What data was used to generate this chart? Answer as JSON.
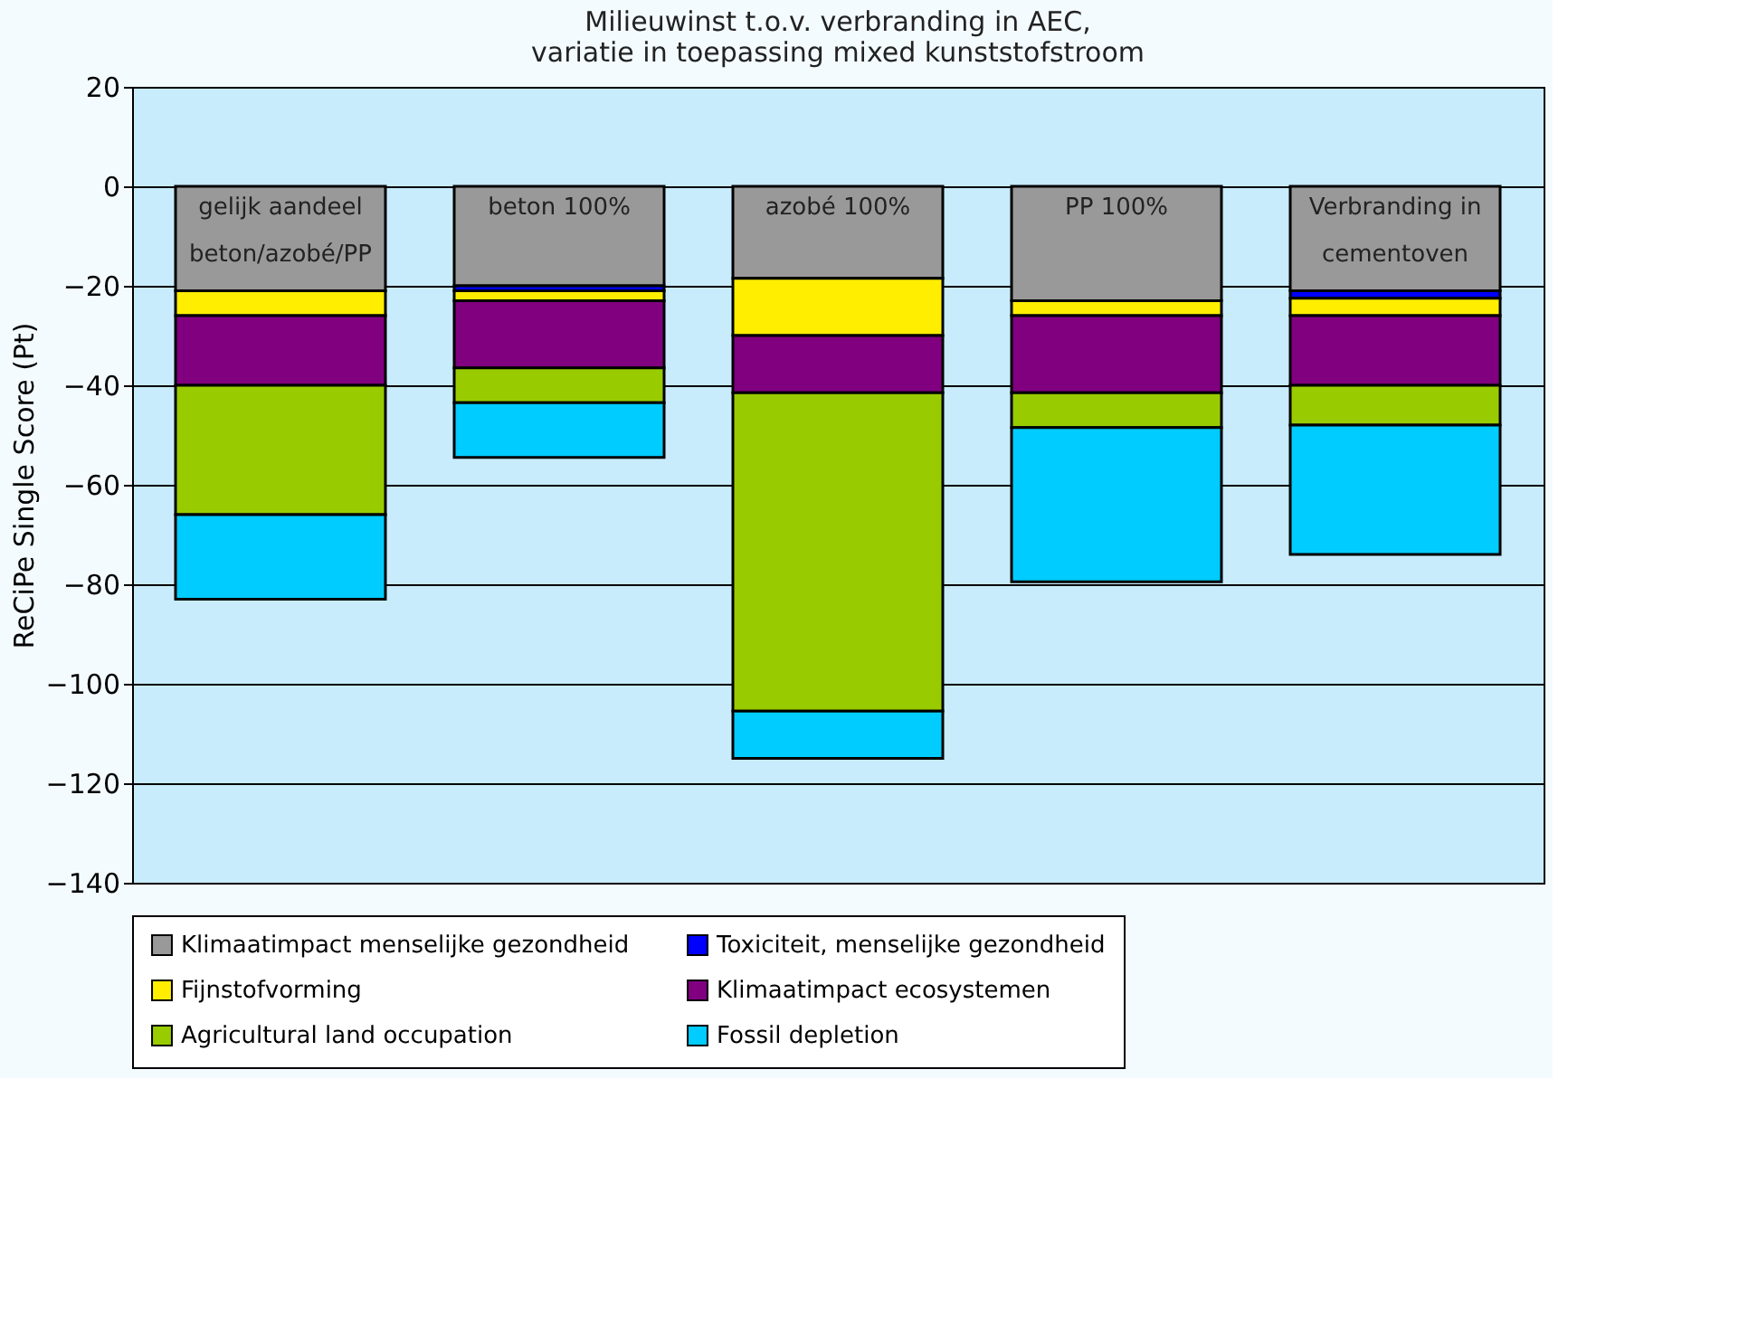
{
  "chart_data": {
    "type": "bar",
    "stacked": true,
    "title": "Milieuwinst t.o.v. verbranding in AEC,\nvariatie in toepassing mixed kunststofstroom",
    "ylabel": "ReCiPe Single Score (Pt)",
    "categories": [
      "gelijk aandeel beton/azobé/PP",
      "beton 100%",
      "azobé 100%",
      "PP 100%",
      "Verbranding in cementoven"
    ],
    "series": [
      {
        "name": "Klimaatimpact menselijke gezondheid",
        "color": "#999999",
        "values": [
          -21,
          -20,
          -18.5,
          -23,
          -21
        ]
      },
      {
        "name": "Toxiciteit, menselijke gezondheid",
        "color": "#0000ff",
        "values": [
          0,
          -1,
          0,
          0,
          -1.5
        ]
      },
      {
        "name": "Fijnstofvorming",
        "color": "#ffee00",
        "values": [
          -5,
          -2,
          -11.5,
          -3,
          -3.5
        ]
      },
      {
        "name": "Klimaatimpact ecosystemen",
        "color": "#800080",
        "values": [
          -14,
          -13.5,
          -11.5,
          -15.5,
          -14
        ]
      },
      {
        "name": "Agricultural land occupation",
        "color": "#99cc00",
        "values": [
          -26,
          -7,
          -64,
          -7,
          -8
        ]
      },
      {
        "name": "Fossil depletion",
        "color": "#00ccff",
        "values": [
          -17,
          -11,
          -9.5,
          -31,
          -26
        ]
      }
    ],
    "ylim": [
      -140,
      20
    ],
    "yticks": [
      -140,
      -120,
      -100,
      -80,
      -60,
      -40,
      -20,
      0,
      20
    ],
    "grid": "y",
    "legend": "bottom",
    "tick_labels": "y"
  }
}
